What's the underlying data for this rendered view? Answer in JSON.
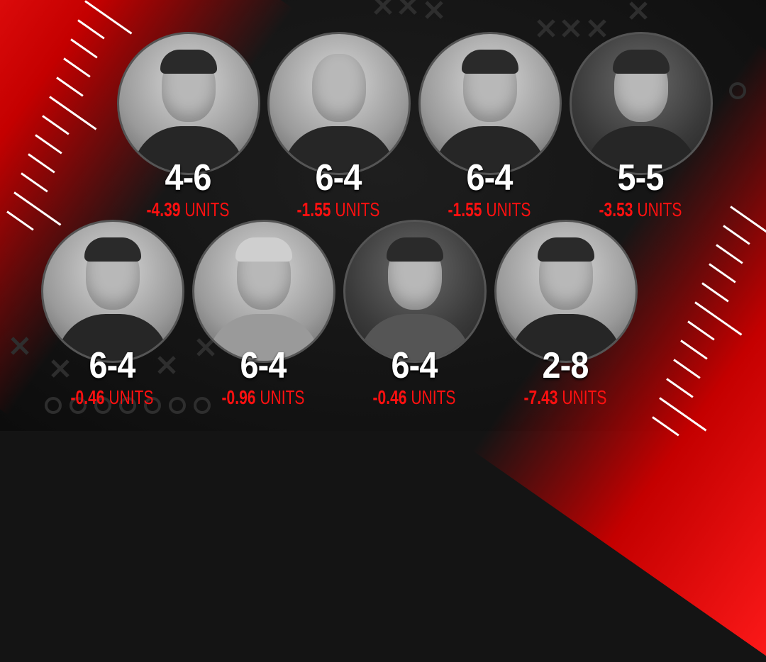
{
  "colors": {
    "accent": "#ff1010",
    "background": "#141414",
    "record": "#ffffff"
  },
  "units_label": "UNITS",
  "experts": [
    {
      "record": "4-6",
      "units": "-4.39",
      "photo": "man-in-suit"
    },
    {
      "record": "6-4",
      "units": "-1.55",
      "photo": "bald-man"
    },
    {
      "record": "6-4",
      "units": "-1.55",
      "photo": "smiling-man"
    },
    {
      "record": "5-5",
      "units": "-3.53",
      "photo": "man-in-suit-dark"
    },
    {
      "record": "6-4",
      "units": "-0.46",
      "photo": "man-mustache"
    },
    {
      "record": "6-4",
      "units": "-0.96",
      "photo": "older-man"
    },
    {
      "record": "6-4",
      "units": "-0.46",
      "photo": "curly-hair-man"
    },
    {
      "record": "2-8",
      "units": "-7.43",
      "photo": "young-man"
    }
  ]
}
